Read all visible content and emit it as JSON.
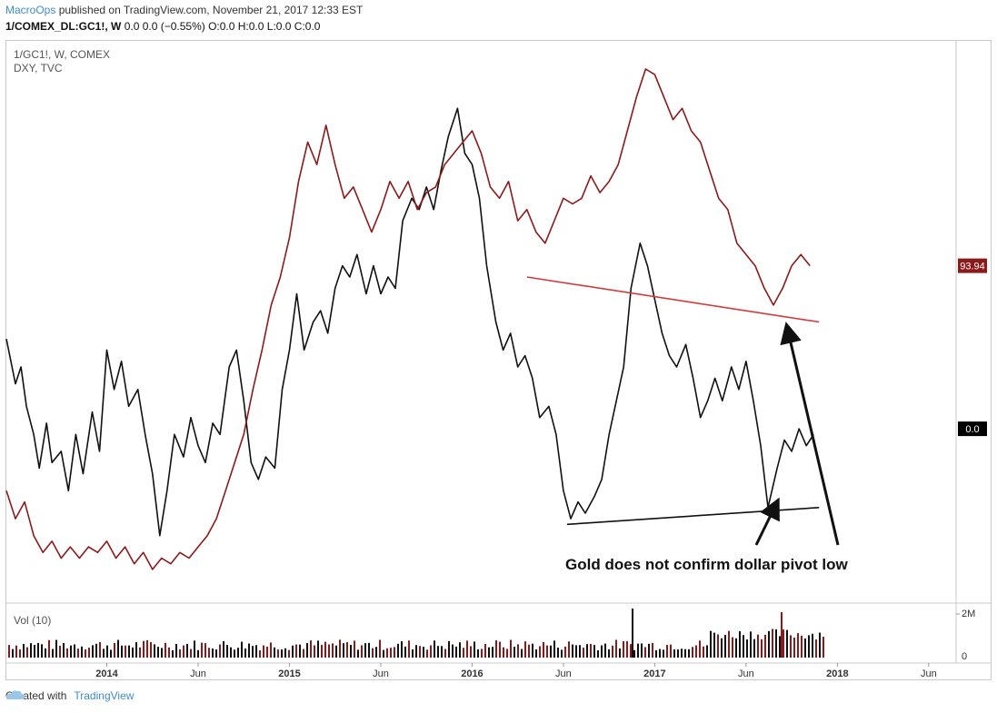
{
  "header": {
    "author": "MacroOps",
    "published_text": "published on TradingView.com, November 21, 2017 12:33 EST",
    "symbol": "1/COMEX_DL:GC1!, W",
    "ohlc": "0.0 0.0 (−0.55%) O:0.0 H:0.0 L:0.0 C:0.0"
  },
  "footer": {
    "created_with": "Created with",
    "brand": "TradingView"
  },
  "colors": {
    "gold_line": "#111111",
    "dxy_line": "#8b1a1a",
    "red_trend": "#d43a3a",
    "black_trend": "#111111",
    "vol_up": "#8b1a1a",
    "vol_down": "#111111"
  },
  "chart_data": {
    "type": "line",
    "legend": [
      "1/GC1!, W, COMEX",
      "DXY, TVC"
    ],
    "x_ticks": [
      "2014",
      "Jun",
      "2015",
      "Jun",
      "2016",
      "Jun",
      "2017",
      "Jun",
      "2018",
      "Jun"
    ],
    "x_range": [
      "2013-06",
      "2018-09"
    ],
    "price_labels": {
      "dxy_last": "93.94",
      "gold_last": "0.0"
    },
    "series": [
      {
        "name": "1/GC1! (inverse gold)",
        "color": "#111111",
        "points": [
          [
            2013.45,
            0.47
          ],
          [
            2013.5,
            0.39
          ],
          [
            2013.53,
            0.42
          ],
          [
            2013.56,
            0.35
          ],
          [
            2013.6,
            0.3
          ],
          [
            2013.63,
            0.24
          ],
          [
            2013.67,
            0.32
          ],
          [
            2013.7,
            0.25
          ],
          [
            2013.75,
            0.27
          ],
          [
            2013.79,
            0.2
          ],
          [
            2013.83,
            0.3
          ],
          [
            2013.87,
            0.23
          ],
          [
            2013.92,
            0.34
          ],
          [
            2013.96,
            0.27
          ],
          [
            2014.0,
            0.45
          ],
          [
            2014.04,
            0.38
          ],
          [
            2014.08,
            0.43
          ],
          [
            2014.12,
            0.35
          ],
          [
            2014.17,
            0.38
          ],
          [
            2014.21,
            0.3
          ],
          [
            2014.25,
            0.23
          ],
          [
            2014.29,
            0.12
          ],
          [
            2014.33,
            0.2
          ],
          [
            2014.37,
            0.3
          ],
          [
            2014.42,
            0.26
          ],
          [
            2014.46,
            0.33
          ],
          [
            2014.5,
            0.28
          ],
          [
            2014.54,
            0.25
          ],
          [
            2014.58,
            0.32
          ],
          [
            2014.62,
            0.3
          ],
          [
            2014.67,
            0.42
          ],
          [
            2014.71,
            0.45
          ],
          [
            2014.75,
            0.36
          ],
          [
            2014.79,
            0.25
          ],
          [
            2014.83,
            0.22
          ],
          [
            2014.87,
            0.26
          ],
          [
            2014.92,
            0.24
          ],
          [
            2014.96,
            0.38
          ],
          [
            2015.0,
            0.45
          ],
          [
            2015.04,
            0.55
          ],
          [
            2015.08,
            0.45
          ],
          [
            2015.13,
            0.5
          ],
          [
            2015.17,
            0.52
          ],
          [
            2015.21,
            0.48
          ],
          [
            2015.25,
            0.56
          ],
          [
            2015.29,
            0.6
          ],
          [
            2015.33,
            0.58
          ],
          [
            2015.37,
            0.62
          ],
          [
            2015.42,
            0.55
          ],
          [
            2015.46,
            0.6
          ],
          [
            2015.5,
            0.55
          ],
          [
            2015.54,
            0.58
          ],
          [
            2015.58,
            0.56
          ],
          [
            2015.62,
            0.68
          ],
          [
            2015.67,
            0.72
          ],
          [
            2015.71,
            0.7
          ],
          [
            2015.75,
            0.74
          ],
          [
            2015.79,
            0.7
          ],
          [
            2015.83,
            0.77
          ],
          [
            2015.87,
            0.83
          ],
          [
            2015.92,
            0.88
          ],
          [
            2015.96,
            0.8
          ],
          [
            2016.0,
            0.78
          ],
          [
            2016.04,
            0.72
          ],
          [
            2016.08,
            0.6
          ],
          [
            2016.13,
            0.5
          ],
          [
            2016.17,
            0.45
          ],
          [
            2016.21,
            0.48
          ],
          [
            2016.25,
            0.42
          ],
          [
            2016.29,
            0.44
          ],
          [
            2016.33,
            0.4
          ],
          [
            2016.37,
            0.33
          ],
          [
            2016.42,
            0.35
          ],
          [
            2016.46,
            0.3
          ],
          [
            2016.5,
            0.2
          ],
          [
            2016.54,
            0.15
          ],
          [
            2016.58,
            0.18
          ],
          [
            2016.62,
            0.16
          ],
          [
            2016.67,
            0.19
          ],
          [
            2016.71,
            0.22
          ],
          [
            2016.75,
            0.3
          ],
          [
            2016.79,
            0.36
          ],
          [
            2016.83,
            0.42
          ],
          [
            2016.87,
            0.56
          ],
          [
            2016.92,
            0.64
          ],
          [
            2016.96,
            0.6
          ],
          [
            2017.0,
            0.54
          ],
          [
            2017.04,
            0.48
          ],
          [
            2017.08,
            0.44
          ],
          [
            2017.12,
            0.42
          ],
          [
            2017.17,
            0.46
          ],
          [
            2017.21,
            0.4
          ],
          [
            2017.25,
            0.33
          ],
          [
            2017.29,
            0.36
          ],
          [
            2017.33,
            0.4
          ],
          [
            2017.37,
            0.36
          ],
          [
            2017.42,
            0.42
          ],
          [
            2017.46,
            0.38
          ],
          [
            2017.5,
            0.43
          ],
          [
            2017.54,
            0.36
          ],
          [
            2017.58,
            0.28
          ],
          [
            2017.62,
            0.17
          ],
          [
            2017.67,
            0.24
          ],
          [
            2017.71,
            0.29
          ],
          [
            2017.75,
            0.27
          ],
          [
            2017.79,
            0.31
          ],
          [
            2017.83,
            0.28
          ],
          [
            2017.87,
            0.3
          ]
        ]
      },
      {
        "name": "DXY",
        "color": "#8b1a1a",
        "points": [
          [
            2013.45,
            0.2
          ],
          [
            2013.5,
            0.15
          ],
          [
            2013.55,
            0.18
          ],
          [
            2013.6,
            0.12
          ],
          [
            2013.65,
            0.09
          ],
          [
            2013.7,
            0.11
          ],
          [
            2013.75,
            0.08
          ],
          [
            2013.8,
            0.1
          ],
          [
            2013.85,
            0.08
          ],
          [
            2013.9,
            0.1
          ],
          [
            2013.95,
            0.09
          ],
          [
            2014.0,
            0.11
          ],
          [
            2014.05,
            0.08
          ],
          [
            2014.1,
            0.1
          ],
          [
            2014.15,
            0.07
          ],
          [
            2014.2,
            0.09
          ],
          [
            2014.25,
            0.06
          ],
          [
            2014.3,
            0.08
          ],
          [
            2014.35,
            0.07
          ],
          [
            2014.4,
            0.09
          ],
          [
            2014.45,
            0.08
          ],
          [
            2014.5,
            0.1
          ],
          [
            2014.55,
            0.12
          ],
          [
            2014.6,
            0.15
          ],
          [
            2014.65,
            0.2
          ],
          [
            2014.7,
            0.25
          ],
          [
            2014.75,
            0.3
          ],
          [
            2014.8,
            0.38
          ],
          [
            2014.85,
            0.45
          ],
          [
            2014.9,
            0.53
          ],
          [
            2014.95,
            0.58
          ],
          [
            2015.0,
            0.65
          ],
          [
            2015.05,
            0.75
          ],
          [
            2015.1,
            0.82
          ],
          [
            2015.15,
            0.78
          ],
          [
            2015.2,
            0.85
          ],
          [
            2015.25,
            0.78
          ],
          [
            2015.3,
            0.72
          ],
          [
            2015.35,
            0.74
          ],
          [
            2015.4,
            0.7
          ],
          [
            2015.45,
            0.66
          ],
          [
            2015.5,
            0.7
          ],
          [
            2015.55,
            0.75
          ],
          [
            2015.6,
            0.72
          ],
          [
            2015.65,
            0.75
          ],
          [
            2015.7,
            0.7
          ],
          [
            2015.75,
            0.73
          ],
          [
            2015.8,
            0.74
          ],
          [
            2015.85,
            0.78
          ],
          [
            2015.9,
            0.8
          ],
          [
            2015.95,
            0.82
          ],
          [
            2016.0,
            0.84
          ],
          [
            2016.05,
            0.8
          ],
          [
            2016.1,
            0.74
          ],
          [
            2016.15,
            0.72
          ],
          [
            2016.2,
            0.75
          ],
          [
            2016.25,
            0.68
          ],
          [
            2016.3,
            0.7
          ],
          [
            2016.35,
            0.66
          ],
          [
            2016.4,
            0.64
          ],
          [
            2016.45,
            0.68
          ],
          [
            2016.5,
            0.72
          ],
          [
            2016.55,
            0.71
          ],
          [
            2016.6,
            0.72
          ],
          [
            2016.65,
            0.76
          ],
          [
            2016.7,
            0.73
          ],
          [
            2016.75,
            0.75
          ],
          [
            2016.8,
            0.78
          ],
          [
            2016.85,
            0.84
          ],
          [
            2016.9,
            0.9
          ],
          [
            2016.95,
            0.95
          ],
          [
            2017.0,
            0.94
          ],
          [
            2017.05,
            0.9
          ],
          [
            2017.1,
            0.86
          ],
          [
            2017.15,
            0.88
          ],
          [
            2017.2,
            0.84
          ],
          [
            2017.25,
            0.82
          ],
          [
            2017.3,
            0.77
          ],
          [
            2017.35,
            0.72
          ],
          [
            2017.4,
            0.7
          ],
          [
            2017.45,
            0.64
          ],
          [
            2017.5,
            0.62
          ],
          [
            2017.55,
            0.6
          ],
          [
            2017.6,
            0.56
          ],
          [
            2017.65,
            0.53
          ],
          [
            2017.7,
            0.56
          ],
          [
            2017.75,
            0.6
          ],
          [
            2017.8,
            0.62
          ],
          [
            2017.85,
            0.6
          ]
        ]
      }
    ],
    "trendlines": [
      {
        "name": "dxy-support-line",
        "color": "#d43a3a",
        "from": [
          2016.3,
          0.58
        ],
        "to": [
          2017.9,
          0.5
        ]
      },
      {
        "name": "gold-support-line",
        "color": "#111111",
        "from": [
          2016.52,
          0.14
        ],
        "to": [
          2017.9,
          0.17
        ]
      }
    ],
    "annotation": "Gold does not confirm dollar pivot low",
    "volume": {
      "label": "Vol (10)",
      "y_ticks": [
        "2M",
        "0"
      ]
    }
  }
}
